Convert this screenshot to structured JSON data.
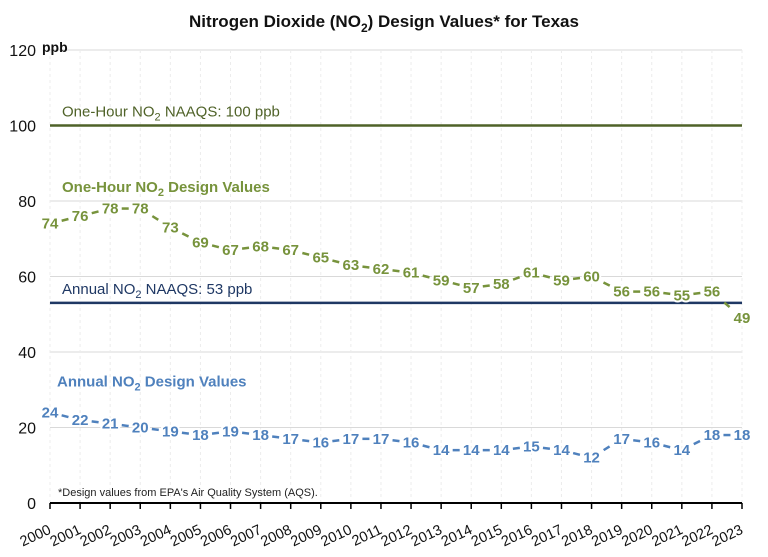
{
  "chart_data": {
    "type": "line",
    "title": "Nitrogen Dioxide (NO2) Design Values* for Texas",
    "title_parts": {
      "pre": "Nitrogen Dioxide (NO",
      "sub": "2",
      "post": ") Design Values* for Texas"
    },
    "ylabel": "ppb",
    "xlabel": "",
    "ylim": [
      0,
      120
    ],
    "yticks": [
      0,
      20,
      40,
      60,
      80,
      100,
      120
    ],
    "grid": true,
    "x": [
      "2000",
      "2001",
      "2002",
      "2003",
      "2004",
      "2005",
      "2006",
      "2007",
      "2008",
      "2009",
      "2010",
      "2011",
      "2012",
      "2013",
      "2014",
      "2015",
      "2016",
      "2017",
      "2018",
      "2019",
      "2020",
      "2021",
      "2022",
      "2023"
    ],
    "series": [
      {
        "name": "One-Hour NO2 Design Values",
        "label_parts": {
          "pre": "One-Hour NO",
          "sub": "2",
          "post": " Design Values"
        },
        "color": "#77933C",
        "style": "data-labels-connected-by-dashes",
        "values": [
          74,
          76,
          78,
          78,
          73,
          69,
          67,
          68,
          67,
          65,
          63,
          62,
          61,
          59,
          57,
          58,
          61,
          59,
          60,
          56,
          56,
          55,
          56,
          49
        ]
      },
      {
        "name": "Annual NO2 Design Values",
        "label_parts": {
          "pre": "Annual NO",
          "sub": "2",
          "post": " Design Values"
        },
        "color": "#4F81BD",
        "style": "data-labels-connected-by-dashes",
        "values": [
          24,
          22,
          21,
          20,
          19,
          18,
          19,
          18,
          17,
          16,
          17,
          17,
          16,
          14,
          14,
          14,
          15,
          14,
          12,
          17,
          16,
          14,
          18,
          18
        ]
      }
    ],
    "reference_lines": [
      {
        "name": "One-Hour NO2 NAAQS",
        "label_parts": {
          "pre": "One-Hour NO",
          "sub": "2",
          "post": " NAAQS: 100 ppb"
        },
        "value": 100,
        "color": "#4F6228"
      },
      {
        "name": "Annual NO2 NAAQS",
        "label_parts": {
          "pre": "Annual NO",
          "sub": "2",
          "post": " NAAQS: 53 ppb"
        },
        "value": 53,
        "color": "#1F3864"
      }
    ],
    "annotations": [
      "*Design values from EPA's Air Quality System (AQS)."
    ]
  }
}
